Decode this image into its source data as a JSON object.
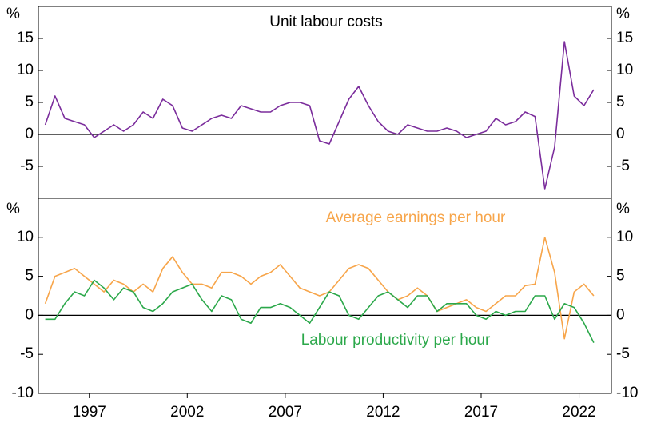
{
  "chart_data": [
    {
      "type": "line",
      "title": "Unit labour costs",
      "unit": "%",
      "x": [
        1995.25,
        1995.75,
        1996.25,
        1996.75,
        1997.25,
        1997.75,
        1998.25,
        1998.75,
        1999.25,
        1999.75,
        2000.25,
        2000.75,
        2001.25,
        2001.75,
        2002.25,
        2002.75,
        2003.25,
        2003.75,
        2004.25,
        2004.75,
        2005.25,
        2005.75,
        2006.25,
        2006.75,
        2007.25,
        2007.75,
        2008.25,
        2008.75,
        2009.25,
        2009.75,
        2010.25,
        2010.75,
        2011.25,
        2011.75,
        2012.25,
        2012.75,
        2013.25,
        2013.75,
        2014.25,
        2014.75,
        2015.25,
        2015.75,
        2016.25,
        2016.75,
        2017.25,
        2017.75,
        2018.25,
        2018.75,
        2019.25,
        2019.75,
        2020.25,
        2020.75,
        2021.25,
        2021.75,
        2022.25,
        2022.75,
        2023.25
      ],
      "series": [
        {
          "name": "Unit labour costs",
          "color": "#7b2d9c",
          "values": [
            1.5,
            6.0,
            2.5,
            2.0,
            1.5,
            -0.5,
            0.5,
            1.5,
            0.5,
            1.5,
            3.5,
            2.5,
            5.5,
            4.5,
            1.0,
            0.5,
            1.5,
            2.5,
            3.0,
            2.5,
            4.5,
            4.0,
            3.5,
            3.5,
            4.5,
            5.0,
            5.0,
            4.5,
            -1.0,
            -1.5,
            2.0,
            5.5,
            7.5,
            4.5,
            2.0,
            0.5,
            0,
            1.5,
            1.0,
            0.5,
            0.5,
            1.0,
            0.5,
            -0.5,
            0,
            0.5,
            2.5,
            1.5,
            2.0,
            3.5,
            2.8,
            -8.5,
            -2.0,
            14.5,
            6.0,
            4.5,
            7.0
          ]
        }
      ],
      "xlim": [
        1994.9,
        2024.15
      ],
      "ylim": [
        -10,
        20
      ],
      "yticks": [
        -5,
        0,
        5,
        10,
        15
      ]
    },
    {
      "type": "line",
      "unit": "%",
      "x": [
        1995.25,
        1995.75,
        1996.25,
        1996.75,
        1997.25,
        1997.75,
        1998.25,
        1998.75,
        1999.25,
        1999.75,
        2000.25,
        2000.75,
        2001.25,
        2001.75,
        2002.25,
        2002.75,
        2003.25,
        2003.75,
        2004.25,
        2004.75,
        2005.25,
        2005.75,
        2006.25,
        2006.75,
        2007.25,
        2007.75,
        2008.25,
        2008.75,
        2009.25,
        2009.75,
        2010.25,
        2010.75,
        2011.25,
        2011.75,
        2012.25,
        2012.75,
        2013.25,
        2013.75,
        2014.25,
        2014.75,
        2015.25,
        2015.75,
        2016.25,
        2016.75,
        2017.25,
        2017.75,
        2018.25,
        2018.75,
        2019.25,
        2019.75,
        2020.25,
        2020.75,
        2021.25,
        2021.75,
        2022.25,
        2022.75,
        2023.25
      ],
      "series": [
        {
          "name": "Average earnings per hour",
          "color": "#f7a54a",
          "values": [
            1.5,
            5.0,
            5.5,
            6.0,
            5.0,
            4.0,
            3.0,
            4.5,
            4.0,
            3.0,
            4.0,
            3.0,
            6.0,
            7.5,
            5.5,
            4.0,
            4.0,
            3.5,
            5.5,
            5.5,
            5.0,
            4.0,
            5.0,
            5.5,
            6.5,
            5.0,
            3.5,
            3.0,
            2.5,
            3.0,
            4.5,
            6.0,
            6.5,
            6.0,
            4.5,
            3.0,
            2.0,
            2.5,
            3.5,
            2.5,
            0.5,
            1.0,
            1.5,
            2.0,
            1.0,
            0.5,
            1.5,
            2.5,
            2.5,
            3.8,
            4.0,
            10.0,
            5.5,
            -3.0,
            3.0,
            4.0,
            2.5
          ]
        },
        {
          "name": "Labour productivity per hour",
          "color": "#2ba84a",
          "values": [
            -0.5,
            -0.5,
            1.5,
            3.0,
            2.5,
            4.5,
            3.5,
            2.0,
            3.5,
            3.0,
            1.0,
            0.5,
            1.5,
            3.0,
            3.5,
            4.0,
            2.0,
            0.5,
            2.5,
            2.0,
            -0.5,
            -1.0,
            1.0,
            1.0,
            1.5,
            1.0,
            0,
            -1.0,
            1.0,
            3.0,
            2.5,
            0,
            -0.5,
            1.0,
            2.5,
            3.0,
            2.0,
            1.0,
            2.5,
            2.5,
            0.5,
            1.5,
            1.5,
            1.5,
            0,
            -0.5,
            0.5,
            0,
            0.5,
            0.5,
            2.5,
            2.5,
            -0.5,
            1.5,
            1.0,
            -1.0,
            -3.5
          ]
        }
      ],
      "xlim": [
        1994.9,
        2024.15
      ],
      "ylim": [
        -10,
        15
      ],
      "yticks": [
        -10,
        -5,
        0,
        5,
        10
      ],
      "xticks": [
        {
          "value": 1997.5,
          "label": "1997"
        },
        {
          "value": 2002.5,
          "label": "2002"
        },
        {
          "value": 2007.5,
          "label": "2007"
        },
        {
          "value": 2012.5,
          "label": "2012"
        },
        {
          "value": 2017.5,
          "label": "2017"
        },
        {
          "value": 2022.5,
          "label": "2022"
        }
      ]
    }
  ]
}
